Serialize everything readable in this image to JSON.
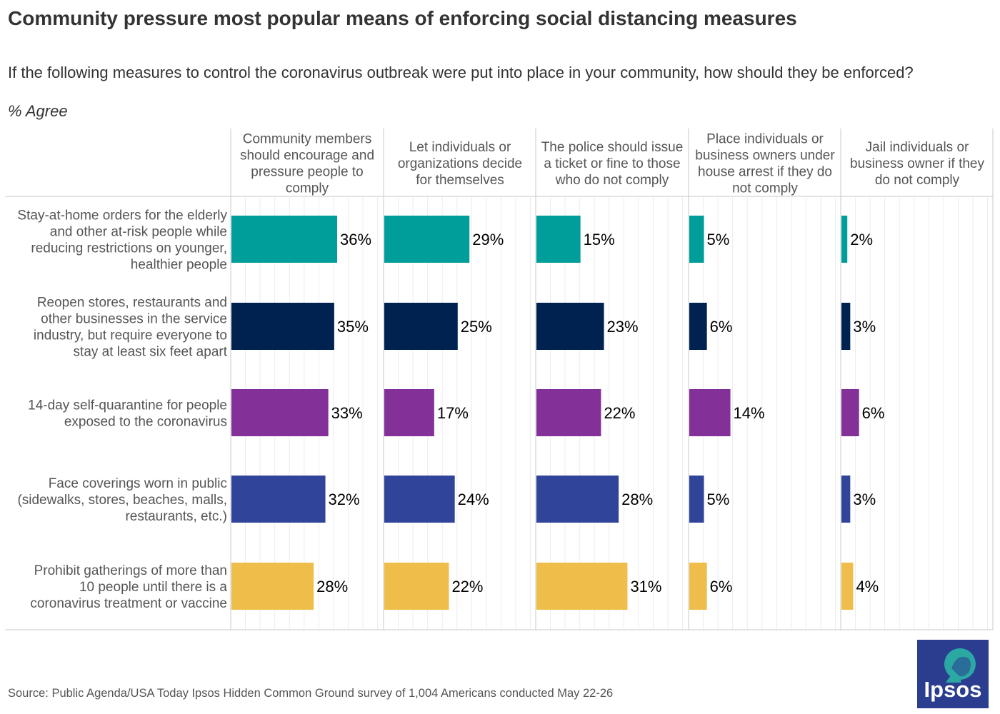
{
  "title": "Community pressure most popular means of enforcing social distancing measures",
  "subtitle": "If the following measures to control the coronavirus outbreak were put into place in your community, how should they be enforced?",
  "measure_label": "% Agree",
  "source": "Source: Public Agenda/USA Today Ipsos Hidden Common Ground survey of 1,004 Americans conducted May 22-26",
  "logo_text": "Ipsos",
  "chart_data": {
    "type": "bar",
    "orientation": "horizontal",
    "layout": "small-multiples",
    "title": "Community pressure most popular means of enforcing social distancing measures",
    "xlim": [
      0,
      40
    ],
    "unit": "%",
    "panels": [
      {
        "name": "Community members should encourage and pressure people to comply",
        "lines": [
          "Community members",
          "should encourage and",
          "pressure people to",
          "comply"
        ]
      },
      {
        "name": "Let individuals or organizations decide for themselves",
        "lines": [
          "Let individuals or",
          "organizations decide",
          "for themselves"
        ]
      },
      {
        "name": "The police should issue a ticket or fine to those who do not comply",
        "lines": [
          "The police should issue",
          "a ticket or fine to those",
          "who do not comply"
        ]
      },
      {
        "name": "Place individuals or business owners under house arrest if they do not comply",
        "lines": [
          "Place individuals or",
          "business owners under",
          "house arrest if they do",
          "not comply"
        ]
      },
      {
        "name": "Jail individuals or business owner if they do not comply",
        "lines": [
          "Jail individuals or",
          "business owner if they",
          "do not comply"
        ]
      }
    ],
    "categories": [
      {
        "name": "Stay-at-home orders for the elderly and other at-risk people while reducing restrictions on younger, healthier people",
        "lines": [
          "Stay-at-home orders for the elderly",
          "and other at-risk people while",
          "reducing restrictions on younger,",
          "healthier people"
        ],
        "color": "#009e9a",
        "values": [
          36,
          29,
          15,
          5,
          2
        ]
      },
      {
        "name": "Reopen stores, restaurants and other businesses in the service industry, but require everyone to stay at least six feet apart",
        "lines": [
          "Reopen stores, restaurants and",
          "other businesses in the service",
          "industry, but require everyone to",
          "stay at least six feet apart"
        ],
        "color": "#002250",
        "values": [
          35,
          25,
          23,
          6,
          3
        ]
      },
      {
        "name": "14-day self-quarantine for people exposed to the coronavirus",
        "lines": [
          "14-day self-quarantine for people",
          "exposed to the coronavirus"
        ],
        "color": "#833199",
        "values": [
          33,
          17,
          22,
          14,
          6
        ]
      },
      {
        "name": "Face coverings worn in public (sidewalks, stores, beaches, malls, restaurants, etc.)",
        "lines": [
          "Face coverings worn in public",
          "(sidewalks, stores, beaches, malls,",
          "restaurants, etc.)"
        ],
        "color": "#30459a",
        "values": [
          32,
          24,
          28,
          5,
          3
        ]
      },
      {
        "name": "Prohibit gatherings of more than 10 people until there is a coronavirus treatment or vaccine",
        "lines": [
          "Prohibit gatherings of more than",
          "10 people until there is a",
          "coronavirus treatment or vaccine"
        ],
        "color": "#efbe4a",
        "values": [
          28,
          22,
          31,
          6,
          4
        ]
      }
    ]
  }
}
